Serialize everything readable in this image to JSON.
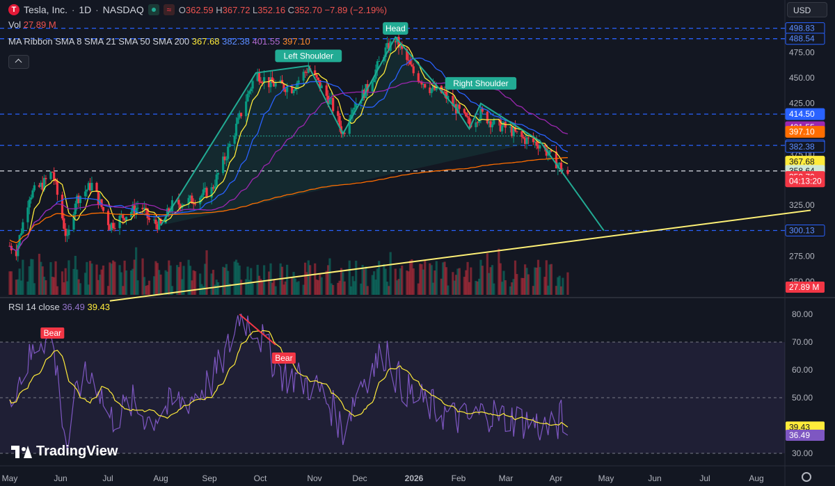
{
  "symbol": {
    "logo_letter": "T",
    "name": "Tesla, Inc.",
    "interval": "1D",
    "exchange": "NASDAQ",
    "status_glyph": "≈",
    "open_label": "O",
    "open": "362.59",
    "high_label": "H",
    "high": "367.72",
    "low_label": "L",
    "low": "352.16",
    "close_label": "C",
    "close": "352.70",
    "change": "−7.89 (−2.19%)"
  },
  "currency": "USD",
  "volume_legend": {
    "label": "Vol",
    "value": "27.89 M"
  },
  "ma_legend": {
    "label": "MA Ribbon SMA 8 SMA 21 SMA 50 SMA 200",
    "values": [
      "367.68",
      "382.38",
      "401.55",
      "397.10"
    ]
  },
  "rsi_legend": {
    "label": "RSI 14 close",
    "rsi": "36.49",
    "ma": "39.43"
  },
  "brand": "TradingView",
  "colors": {
    "up": "#089981",
    "down": "#f23645",
    "sma8": "#ffeb3b",
    "sma21": "#2962ff",
    "sma50": "#9c27b0",
    "sma200": "#ff6d00",
    "pattern": "#22ab94",
    "trend": "#fff176",
    "rsi": "#7e57c2",
    "rsi_ma": "#ffeb3b",
    "dashed_blue": "#2962ff"
  },
  "chart_data": {
    "type": "candlestick",
    "title": "Tesla, Inc. · 1D · NASDAQ",
    "y_axis": {
      "ticks": [
        250,
        275,
        300,
        325,
        350,
        375,
        400,
        425,
        450,
        475
      ],
      "range": [
        231,
        505
      ]
    },
    "x_axis": {
      "ticks": [
        "May",
        "Jun",
        "Jul",
        "Aug",
        "Sep",
        "Oct",
        "Nov",
        "Dec",
        "2026",
        "Feb",
        "Mar",
        "Apr",
        "May",
        "Jun",
        "Jul",
        "Aug"
      ]
    },
    "price_path": [
      [
        "2025-05-01",
        285
      ],
      [
        "2025-05-05",
        280
      ],
      [
        "2025-05-13",
        335
      ],
      [
        "2025-05-21",
        345
      ],
      [
        "2025-05-27",
        358
      ],
      [
        "2025-06-05",
        290
      ],
      [
        "2025-06-10",
        330
      ],
      [
        "2025-06-20",
        345
      ],
      [
        "2025-07-01",
        305
      ],
      [
        "2025-07-10",
        315
      ],
      [
        "2025-07-20",
        325
      ],
      [
        "2025-07-25",
        310
      ],
      [
        "2025-08-01",
        305
      ],
      [
        "2025-08-08",
        325
      ],
      [
        "2025-08-20",
        330
      ],
      [
        "2025-09-01",
        340
      ],
      [
        "2025-09-10",
        375
      ],
      [
        "2025-09-20",
        420
      ],
      [
        "2025-09-28",
        455
      ],
      [
        "2025-10-06",
        445
      ],
      [
        "2025-10-20",
        440
      ],
      [
        "2025-10-30",
        460
      ],
      [
        "2025-11-05",
        445
      ],
      [
        "2025-11-13",
        425
      ],
      [
        "2025-11-20",
        395
      ],
      [
        "2025-11-25",
        420
      ],
      [
        "2025-12-05",
        440
      ],
      [
        "2025-12-15",
        475
      ],
      [
        "2025-12-22",
        488
      ],
      [
        "2026-01-02",
        455
      ],
      [
        "2026-01-12",
        440
      ],
      [
        "2026-01-20",
        435
      ],
      [
        "2026-01-28",
        420
      ],
      [
        "2026-02-05",
        405
      ],
      [
        "2026-02-12",
        415
      ],
      [
        "2026-02-20",
        405
      ],
      [
        "2026-03-01",
        400
      ],
      [
        "2026-03-10",
        390
      ],
      [
        "2026-03-20",
        385
      ],
      [
        "2026-03-27",
        372
      ],
      [
        "2026-04-02",
        362
      ],
      [
        "2026-04-06",
        352.7
      ]
    ],
    "ma_lines": [
      {
        "name": "SMA 8",
        "value": 367.68
      },
      {
        "name": "SMA 21",
        "value": 382.38
      },
      {
        "name": "SMA 50",
        "value": 401.55
      },
      {
        "name": "SMA 200",
        "value": 397.1
      }
    ],
    "horizontal_levels": [
      498.83,
      488.54,
      414.5,
      383.76,
      358.64,
      300.13
    ],
    "price_labels": [
      {
        "text": "498.83",
        "value": 498.83,
        "style": "blue-outline"
      },
      {
        "text": "488.54",
        "value": 488.54,
        "style": "blue-outline"
      },
      {
        "text": "414.50",
        "value": 414.5,
        "style": "blue"
      },
      {
        "text": "401.55",
        "value": 401.55,
        "style": "purple"
      },
      {
        "text": "397.10",
        "value": 397.1,
        "style": "orange"
      },
      {
        "text": "383.76",
        "value": 383.76,
        "style": "blue-outline"
      },
      {
        "text": "382.38",
        "value": 382.38,
        "style": "blue-outline"
      },
      {
        "text": "367.68",
        "value": 367.68,
        "style": "yellow"
      },
      {
        "text": "358.64",
        "value": 358.64,
        "style": "green"
      },
      {
        "text": "352.70",
        "value": 352.7,
        "style": "red"
      },
      {
        "text": "04:13:20",
        "value": 348.5,
        "style": "red"
      },
      {
        "text": "300.13",
        "value": 300.13,
        "style": "blue-outline"
      }
    ],
    "pattern_labels": [
      {
        "text": "Left Shoulder",
        "date": "2025-10-30",
        "price": 471
      },
      {
        "text": "Head",
        "date": "2025-12-22",
        "price": 498
      },
      {
        "text": "Right Shoulder",
        "date": "2026-02-12",
        "price": 444
      }
    ],
    "pattern_points": [
      [
        "2025-08-01",
        305
      ],
      [
        "2025-09-28",
        455
      ],
      [
        "2025-10-30",
        462
      ],
      [
        "2025-11-20",
        395
      ],
      [
        "2025-12-22",
        490
      ],
      [
        "2026-01-28",
        420
      ],
      [
        "2026-02-05",
        400
      ],
      [
        "2026-02-12",
        425
      ],
      [
        "2026-03-20",
        388
      ],
      [
        "2026-04-28",
        300
      ]
    ],
    "neckline": {
      "price": 393
    },
    "trendline": [
      [
        "2025-07-01",
        231
      ],
      [
        "2026-09-01",
        320
      ]
    ],
    "volume": {
      "last": "27.89 M"
    },
    "rsi": {
      "ticks": [
        30,
        40,
        50,
        60,
        70,
        80
      ],
      "levels": [
        30,
        50,
        70
      ],
      "range": [
        28,
        83
      ],
      "last": 36.49,
      "ma_last": 39.43,
      "path": [
        [
          "2025-05-01",
          52
        ],
        [
          "2025-05-10",
          60
        ],
        [
          "2025-05-20",
          72
        ],
        [
          "2025-05-27",
          70
        ],
        [
          "2025-06-05",
          32
        ],
        [
          "2025-06-12",
          55
        ],
        [
          "2025-06-22",
          58
        ],
        [
          "2025-07-01",
          42
        ],
        [
          "2025-07-15",
          48
        ],
        [
          "2025-07-25",
          42
        ],
        [
          "2025-08-01",
          45
        ],
        [
          "2025-08-10",
          48
        ],
        [
          "2025-08-20",
          50
        ],
        [
          "2025-09-01",
          56
        ],
        [
          "2025-09-10",
          66
        ],
        [
          "2025-09-18",
          80
        ],
        [
          "2025-09-28",
          75
        ],
        [
          "2025-10-06",
          66
        ],
        [
          "2025-10-15",
          58
        ],
        [
          "2025-10-23",
          57
        ],
        [
          "2025-11-05",
          53
        ],
        [
          "2025-11-15",
          45
        ],
        [
          "2025-11-20",
          38
        ],
        [
          "2025-11-30",
          55
        ],
        [
          "2025-12-10",
          62
        ],
        [
          "2025-12-18",
          68
        ],
        [
          "2025-12-22",
          58
        ],
        [
          "2026-01-02",
          50
        ],
        [
          "2026-01-12",
          47
        ],
        [
          "2026-01-25",
          43
        ],
        [
          "2026-02-05",
          42
        ],
        [
          "2026-02-15",
          45
        ],
        [
          "2026-02-25",
          43
        ],
        [
          "2026-03-08",
          42
        ],
        [
          "2026-03-20",
          40
        ],
        [
          "2026-03-28",
          38
        ],
        [
          "2026-04-02",
          43
        ],
        [
          "2026-04-06",
          36.49
        ]
      ]
    },
    "rsi_labels": [
      {
        "text": "Bear",
        "date": "2025-05-27",
        "value": 73
      },
      {
        "text": "Bear",
        "date": "2025-10-15",
        "value": 64
      }
    ],
    "rsi_label_values": [
      {
        "text": "39.43",
        "value": 39.43,
        "style": "yellow"
      },
      {
        "text": "36.49",
        "value": 36.49,
        "style": "purple"
      }
    ]
  }
}
